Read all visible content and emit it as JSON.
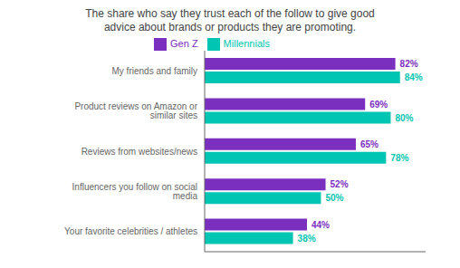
{
  "chart_data": {
    "type": "bar",
    "orientation": "horizontal",
    "title": "The share who say they trust each of the follow to give good\nadvice about brands or products they are promoting.",
    "categories": [
      "My friends and family",
      "Product reviews on Amazon or similar sites",
      "Reviews from websites/news",
      "Influencers you follow on social media",
      "Your favorite celebrities / athletes"
    ],
    "series": [
      {
        "name": "Gen Z",
        "color": "#7B2FBE",
        "values": [
          82,
          69,
          65,
          52,
          44
        ],
        "value_labels": [
          "82%",
          "69%",
          "65%",
          "52%",
          "44%"
        ]
      },
      {
        "name": "Millennials",
        "color": "#00C5B2",
        "values": [
          84,
          80,
          78,
          50,
          38
        ],
        "value_labels": [
          "84%",
          "80%",
          "78%",
          "50%",
          "38%"
        ]
      }
    ],
    "xlim": [
      0,
      95
    ],
    "data_labels": true,
    "tick_labels": "y",
    "legend": "top",
    "grid": false
  }
}
